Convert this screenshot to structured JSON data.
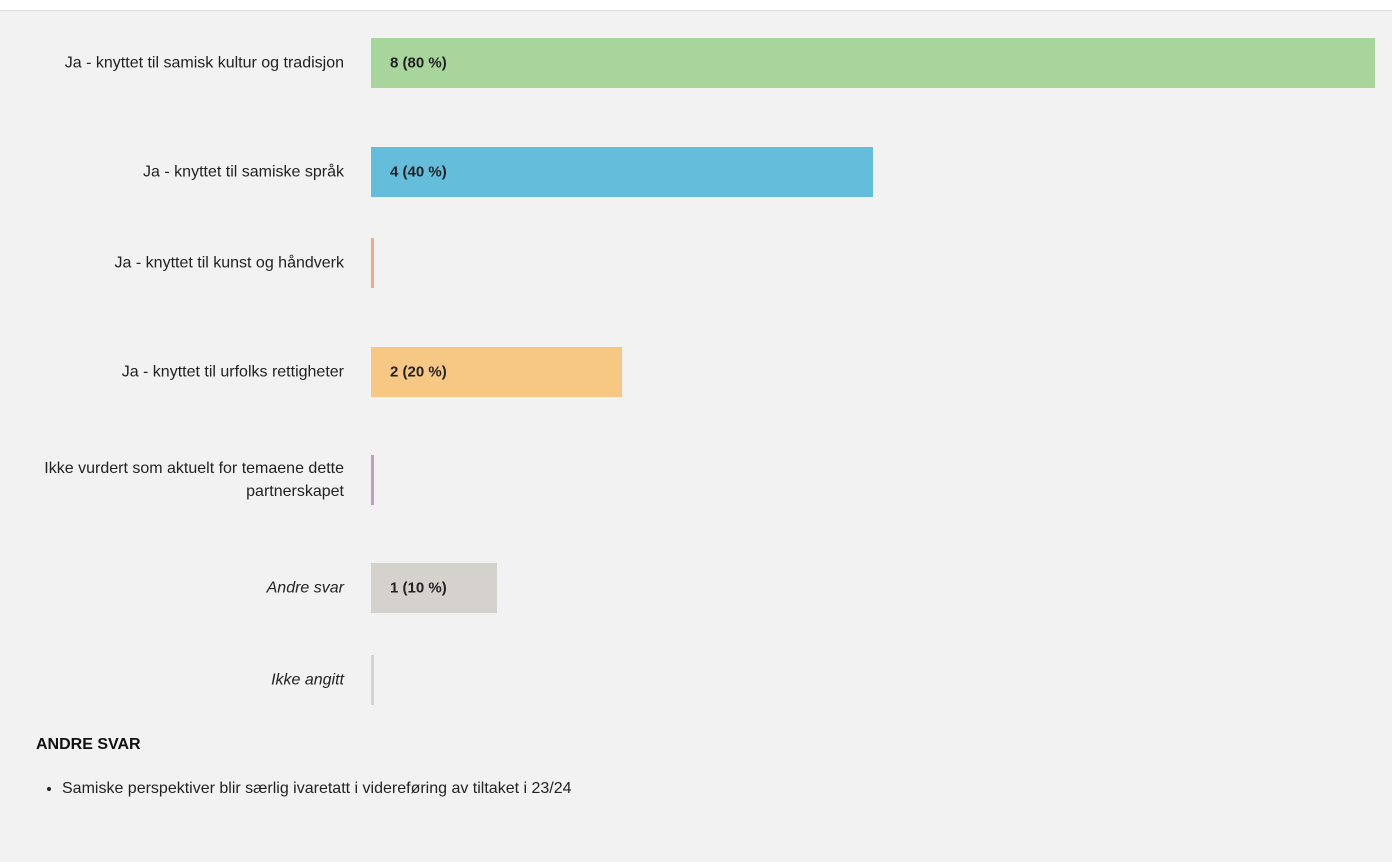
{
  "chart_data": {
    "type": "bar",
    "orientation": "horizontal",
    "categories": [
      "Ja - knyttet til samisk kultur og tradisjon",
      "Ja - knyttet til samiske språk",
      "Ja - knyttet til kunst og håndverk",
      "Ja - knyttet til urfolks rettigheter",
      "Ikke vurdert som aktuelt for temaene dette partnerskapet",
      "Andre svar",
      "Ikke angitt"
    ],
    "values": [
      8,
      4,
      0,
      2,
      0,
      1,
      0
    ],
    "value_labels": [
      "8 (80 %)",
      "4 (40 %)",
      null,
      "2 (20 %)",
      null,
      "1 (10 %)",
      null
    ],
    "colors": [
      "#a8d59b",
      "#63bddb",
      "#f0a989",
      "#f7c884",
      "#c39ec3",
      "#d5d2cd",
      "#d3d3d3"
    ],
    "other_answers": {
      "title": "ANDRE SVAR",
      "items": [
        "Samiske perspektiver blir særlig ivaretatt i videreføring av tiltaket i 23/24"
      ]
    }
  }
}
